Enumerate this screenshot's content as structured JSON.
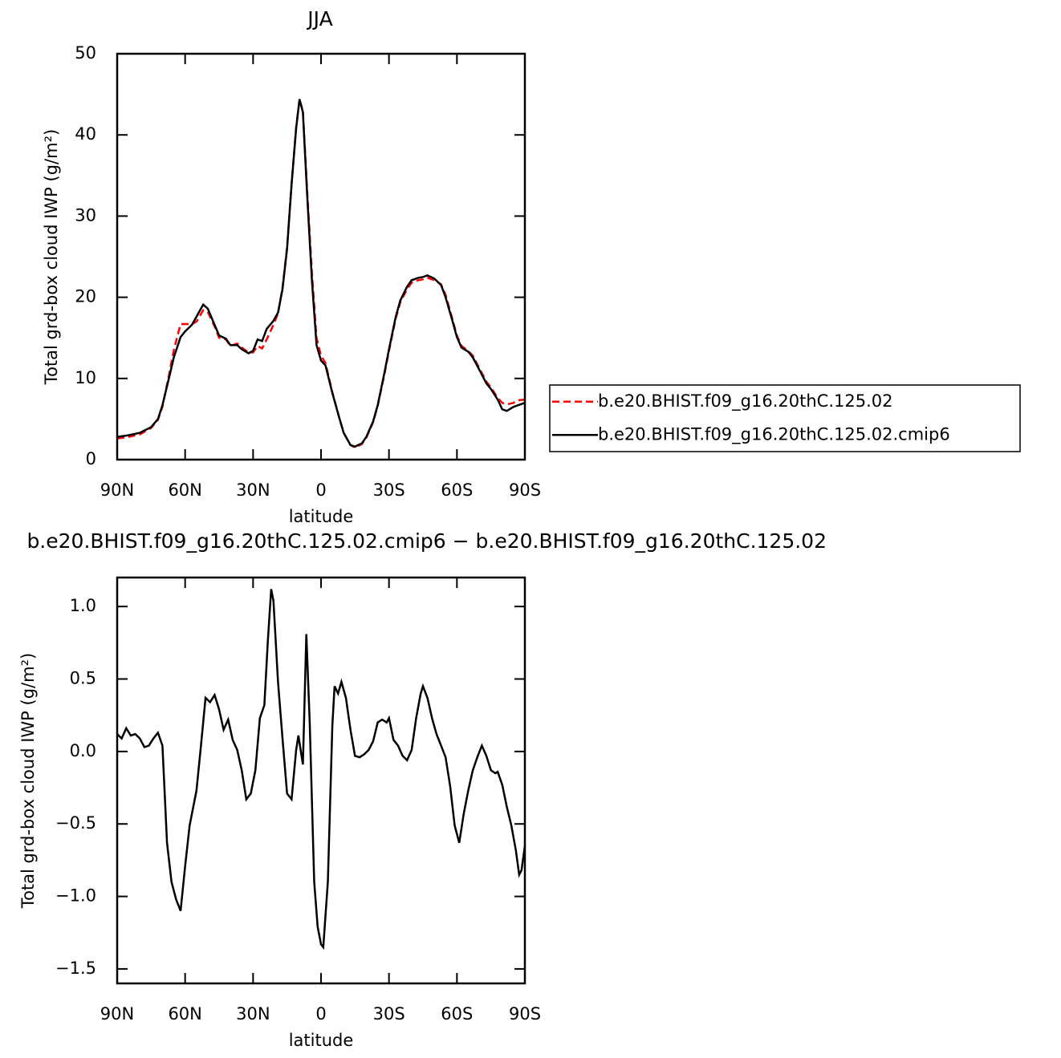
{
  "chart_data": [
    {
      "type": "line",
      "title": "JJA",
      "xlabel": "latitude",
      "ylabel": "Total grd-box cloud IWP (g/m²)",
      "x": [
        90,
        85,
        80,
        75,
        72,
        70,
        67,
        65,
        62,
        60,
        57,
        55,
        52,
        50,
        47,
        45,
        42,
        40,
        37,
        35,
        32,
        30,
        28,
        26,
        24,
        21,
        19,
        17,
        15,
        13,
        11,
        9.5,
        8,
        6,
        4,
        2,
        0,
        -2,
        -5,
        -8,
        -10,
        -13,
        -15,
        -18,
        -20,
        -23,
        -25,
        -28,
        -30,
        -33,
        -35,
        -38,
        -40,
        -43,
        -45,
        -47,
        -50,
        -53,
        -55,
        -58,
        -60,
        -62,
        -65,
        -67,
        -70,
        -73,
        -75,
        -78,
        -80,
        -82,
        -85,
        -87,
        -90
      ],
      "series": [
        {
          "name": "b.e20.BHIST.f09_g16.20thC.125.02",
          "color": "#ff0000",
          "dashed": true,
          "values": [
            2.6,
            2.8,
            3.1,
            3.9,
            4.9,
            6.5,
            10.6,
            13.5,
            16.7,
            16.7,
            16.7,
            17.0,
            18.4,
            18.2,
            16.4,
            15.0,
            14.8,
            14.0,
            14.3,
            13.8,
            13.2,
            13.2,
            14.0,
            13.7,
            14.8,
            16.6,
            18.0,
            21.2,
            26.2,
            34.0,
            41.0,
            44.3,
            43.0,
            32.5,
            23.0,
            15.0,
            12.8,
            11.9,
            8.3,
            5.2,
            3.3,
            1.8,
            1.5,
            1.9,
            2.7,
            4.6,
            6.6,
            10.5,
            13.4,
            17.4,
            19.4,
            21.0,
            21.8,
            22.1,
            22.2,
            22.4,
            22.1,
            21.6,
            20.3,
            17.3,
            15.3,
            14.0,
            13.4,
            12.8,
            11.2,
            9.6,
            8.9,
            7.6,
            7.0,
            6.8,
            7.0,
            7.3,
            7.4
          ]
        },
        {
          "name": "b.e20.BHIST.f09_g16.20thC.125.02.cmip6",
          "color": "#000000",
          "dashed": false,
          "values": [
            2.8,
            3.0,
            3.3,
            4.0,
            5.0,
            6.7,
            10.2,
            12.6,
            15.1,
            15.8,
            16.6,
            17.6,
            19.1,
            18.6,
            16.6,
            15.3,
            14.9,
            14.1,
            14.1,
            13.6,
            13.1,
            13.4,
            14.8,
            14.6,
            16.1,
            17.1,
            18.1,
            21.0,
            26.0,
            33.9,
            40.8,
            44.4,
            42.8,
            31.9,
            22.0,
            14.1,
            12.2,
            11.6,
            8.2,
            5.2,
            3.3,
            1.8,
            1.6,
            2.0,
            2.8,
            4.7,
            6.7,
            10.7,
            13.6,
            17.6,
            19.6,
            21.3,
            22.1,
            22.4,
            22.5,
            22.7,
            22.3,
            21.5,
            20.0,
            17.1,
            15.1,
            13.8,
            13.3,
            12.6,
            11.0,
            9.4,
            8.7,
            7.4,
            6.2,
            6.0,
            6.5,
            6.7,
            7.0
          ]
        }
      ],
      "xlim": [
        90,
        -90
      ],
      "xticks": [
        {
          "value": 90,
          "label": "90N"
        },
        {
          "value": 60,
          "label": "60N"
        },
        {
          "value": 30,
          "label": "30N"
        },
        0,
        {
          "value": -30,
          "label": "30S"
        },
        {
          "value": -60,
          "label": "60S"
        },
        {
          "value": -90,
          "label": "90S"
        }
      ],
      "ylim": [
        0,
        50
      ],
      "yticks": [
        0,
        10,
        20,
        30,
        40,
        50
      ],
      "legend": "right",
      "grid": false
    },
    {
      "type": "line",
      "title": "b.e20.BHIST.f09_g16.20thC.125.02.cmip6 − b.e20.BHIST.f09_g16.20thC.125.02",
      "xlabel": "latitude",
      "ylabel": "Total grd-box cloud IWP (g/m²)",
      "x": [
        90,
        88,
        86,
        84,
        82,
        80,
        78,
        76,
        74,
        72,
        70,
        68,
        66,
        64,
        62,
        60,
        58,
        55,
        53,
        51,
        49,
        47,
        45,
        43,
        41,
        39,
        37,
        35,
        33,
        31,
        29,
        27,
        25,
        23.5,
        22,
        21,
        19,
        17,
        15,
        13,
        11,
        10,
        8,
        6.5,
        5,
        3,
        1.5,
        0,
        -1,
        -3,
        -5,
        -6,
        -7.5,
        -9,
        -11,
        -13,
        -15,
        -17,
        -19,
        -21,
        -23,
        -25,
        -27,
        -29,
        -30,
        -32,
        -34,
        -36,
        -38,
        -40,
        -42,
        -44,
        -45,
        -47,
        -49,
        -51,
        -53,
        -55,
        -57,
        -59,
        -61,
        -63,
        -65,
        -67,
        -69,
        -71,
        -73,
        -75,
        -77,
        -78,
        -80,
        -82,
        -84,
        -86,
        -87.5,
        -88.5,
        -90
      ],
      "series": [
        {
          "color": "#000000",
          "dashed": false,
          "values": [
            0.12,
            0.09,
            0.16,
            0.11,
            0.12,
            0.09,
            0.03,
            0.04,
            0.09,
            0.13,
            0.04,
            -0.63,
            -0.9,
            -1.02,
            -1.1,
            -0.79,
            -0.51,
            -0.27,
            0.04,
            0.37,
            0.34,
            0.39,
            0.29,
            0.15,
            0.22,
            0.08,
            0.01,
            -0.13,
            -0.33,
            -0.29,
            -0.13,
            0.23,
            0.32,
            0.76,
            1.12,
            1.04,
            0.48,
            0.09,
            -0.29,
            -0.33,
            0.01,
            0.11,
            -0.09,
            0.81,
            0.2,
            -0.9,
            -1.21,
            -1.33,
            -1.35,
            -0.9,
            0.18,
            0.45,
            0.4,
            0.48,
            0.37,
            0.15,
            -0.03,
            -0.04,
            -0.02,
            0.01,
            0.07,
            0.2,
            0.22,
            0.2,
            0.23,
            0.08,
            0.04,
            -0.03,
            -0.06,
            0.01,
            0.23,
            0.4,
            0.45,
            0.37,
            0.23,
            0.12,
            0.04,
            -0.04,
            -0.24,
            -0.51,
            -0.63,
            -0.43,
            -0.27,
            -0.13,
            -0.04,
            0.04,
            -0.03,
            -0.13,
            -0.15,
            -0.14,
            -0.23,
            -0.38,
            -0.51,
            -0.68,
            -0.85,
            -0.82,
            -0.65
          ]
        }
      ],
      "xlim": [
        90,
        -90
      ],
      "xticks": [
        {
          "value": 90,
          "label": "90N"
        },
        {
          "value": 60,
          "label": "60N"
        },
        {
          "value": 30,
          "label": "30N"
        },
        0,
        {
          "value": -30,
          "label": "30S"
        },
        {
          "value": -60,
          "label": "60S"
        },
        {
          "value": -90,
          "label": "90S"
        }
      ],
      "ylim": [
        -1.6,
        1.2
      ],
      "yticks": [
        {
          "value": -1.5,
          "label": "−1.5"
        },
        {
          "value": -1,
          "label": "−1.0"
        },
        {
          "value": -0.5,
          "label": "−0.5"
        },
        {
          "value": 0,
          "label": "0.0"
        },
        0.5,
        {
          "value": 1,
          "label": "1.0"
        }
      ],
      "grid": false
    }
  ]
}
